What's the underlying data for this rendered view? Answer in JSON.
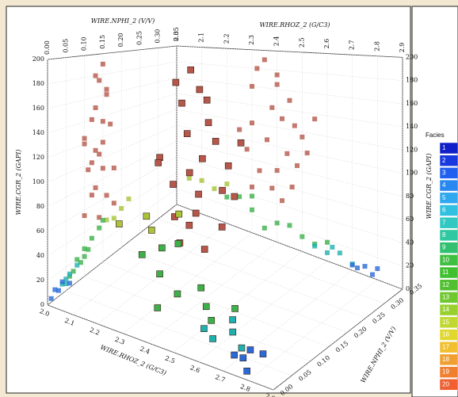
{
  "chart_data": {
    "type": "scatter3d",
    "x_label": "WIRE.RHOZ_2 (G/C3)",
    "y_label": "WIRE.NPHI_2 (V/V)",
    "z_label": "WIRE.CGR_2 (GAPI)",
    "xlim": [
      2.0,
      2.9
    ],
    "xticks": [
      {
        "value": 2.0,
        "label": "2.0"
      },
      2.1,
      2.2,
      2.3,
      2.4,
      2.5,
      2.6,
      2.7,
      2.8,
      2.9
    ],
    "ylim": [
      0,
      0.35
    ],
    "yticks": [
      {
        "value": 0,
        "label": "0.00"
      },
      0.05,
      {
        "value": 0.1,
        "label": "0.10"
      },
      0.15,
      {
        "value": 0.2,
        "label": "0.20"
      },
      0.25,
      {
        "value": 0.3,
        "label": "0.30"
      },
      0.35
    ],
    "zlim": [
      0,
      200
    ],
    "zticks": [
      0,
      20,
      40,
      60,
      80,
      100,
      120,
      140,
      160,
      180,
      200
    ],
    "grid": true,
    "series": [
      {
        "color": "#b5574a",
        "points": [
          [
            2.35,
            0.15,
            190
          ],
          [
            2.4,
            0.14,
            175
          ],
          [
            2.3,
            0.16,
            160
          ],
          [
            2.45,
            0.13,
            150
          ],
          [
            2.38,
            0.12,
            140
          ],
          [
            2.42,
            0.17,
            130
          ],
          [
            2.3,
            0.1,
            120
          ],
          [
            2.5,
            0.15,
            115
          ],
          [
            2.36,
            0.14,
            105
          ],
          [
            2.44,
            0.11,
            95
          ],
          [
            2.28,
            0.15,
            90
          ],
          [
            2.48,
            0.18,
            85
          ],
          [
            2.4,
            0.13,
            75
          ],
          [
            2.33,
            0.12,
            70
          ],
          [
            2.46,
            0.16,
            62
          ],
          [
            2.38,
            0.1,
            55
          ],
          [
            2.3,
            0.18,
            50
          ],
          [
            2.42,
            0.14,
            45
          ],
          [
            2.52,
            0.12,
            100
          ],
          [
            2.25,
            0.13,
            110
          ],
          [
            2.55,
            0.15,
            135
          ],
          [
            2.4,
            0.16,
            165
          ],
          [
            2.32,
            0.13,
            180
          ],
          [
            2.47,
            0.1,
            125
          ]
        ]
      },
      {
        "color": "#a8c43a",
        "points": [
          [
            2.1,
            0.2,
            40
          ],
          [
            2.15,
            0.18,
            35
          ],
          [
            2.2,
            0.22,
            45
          ],
          [
            2.05,
            0.16,
            38
          ]
        ]
      },
      {
        "color": "#3cb04a",
        "points": [
          [
            2.2,
            0.12,
            30
          ],
          [
            2.3,
            0.1,
            25
          ],
          [
            2.4,
            0.08,
            20
          ],
          [
            2.5,
            0.09,
            15
          ],
          [
            2.25,
            0.14,
            35
          ],
          [
            2.35,
            0.06,
            10
          ],
          [
            2.45,
            0.11,
            22
          ],
          [
            2.55,
            0.07,
            12
          ],
          [
            2.3,
            0.15,
            40
          ],
          [
            2.6,
            0.1,
            18
          ]
        ]
      },
      {
        "color": "#20b0b0",
        "points": [
          [
            2.55,
            0.05,
            10
          ],
          [
            2.6,
            0.04,
            8
          ],
          [
            2.65,
            0.06,
            12
          ],
          [
            2.7,
            0.05,
            6
          ],
          [
            2.62,
            0.08,
            15
          ]
        ]
      },
      {
        "color": "#2a6ad6",
        "points": [
          [
            2.7,
            0.03,
            5
          ],
          [
            2.75,
            0.02,
            8
          ],
          [
            2.8,
            0.04,
            10
          ],
          [
            2.72,
            0.06,
            4
          ],
          [
            2.78,
            0.01,
            3
          ]
        ]
      }
    ],
    "legend": {
      "title": "Facies",
      "items": [
        {
          "label": "1",
          "color": "#1020c8"
        },
        {
          "label": "2",
          "color": "#1838e0"
        },
        {
          "label": "3",
          "color": "#2060f0"
        },
        {
          "label": "4",
          "color": "#2888f0"
        },
        {
          "label": "5",
          "color": "#30a8f0"
        },
        {
          "label": "6",
          "color": "#30c0e0"
        },
        {
          "label": "7",
          "color": "#30c8c0"
        },
        {
          "label": "8",
          "color": "#30c8a0"
        },
        {
          "label": "9",
          "color": "#30c070"
        },
        {
          "label": "10",
          "color": "#40c040"
        },
        {
          "label": "11",
          "color": "#40c030"
        },
        {
          "label": "12",
          "color": "#50c030"
        },
        {
          "label": "13",
          "color": "#70c830"
        },
        {
          "label": "14",
          "color": "#98d030"
        },
        {
          "label": "15",
          "color": "#c0d830"
        },
        {
          "label": "16",
          "color": "#e0d830"
        },
        {
          "label": "17",
          "color": "#f0c030"
        },
        {
          "label": "18",
          "color": "#f0a030"
        },
        {
          "label": "19",
          "color": "#f08030"
        },
        {
          "label": "20",
          "color": "#f06030"
        }
      ]
    }
  }
}
